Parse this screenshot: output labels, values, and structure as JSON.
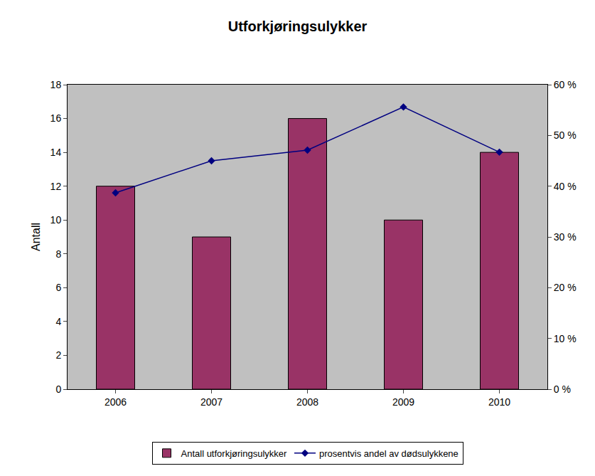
{
  "chart_data": {
    "type": "bar",
    "title": "Utforkjøringsulykker",
    "y_label": "Antall",
    "categories": [
      "2006",
      "2007",
      "2008",
      "2009",
      "2010"
    ],
    "series": [
      {
        "name": "Antall utforkjøringsulykker",
        "type": "bar",
        "color": "#993366",
        "values": [
          12,
          9,
          16,
          10,
          14
        ]
      },
      {
        "name": "prosentvis andel av dødsulykkene",
        "type": "line",
        "axis": "y2",
        "color": "#000080",
        "marker": "diamond",
        "values": [
          38.7,
          45,
          47.1,
          55.6,
          46.7
        ]
      }
    ],
    "ylim": [
      0,
      18
    ],
    "yticks": [
      0,
      2,
      4,
      6,
      8,
      10,
      12,
      14,
      16,
      18
    ],
    "y2lim": [
      0,
      60
    ],
    "y2ticks": [
      {
        "value": 0,
        "label": "0 %"
      },
      {
        "value": 10,
        "label": "10 %"
      },
      {
        "value": 20,
        "label": "20 %"
      },
      {
        "value": 30,
        "label": "30 %"
      },
      {
        "value": 40,
        "label": "40 %"
      },
      {
        "value": 50,
        "label": "50 %"
      },
      {
        "value": 60,
        "label": "60 %"
      }
    ],
    "grid": false,
    "legend": "bottom"
  }
}
